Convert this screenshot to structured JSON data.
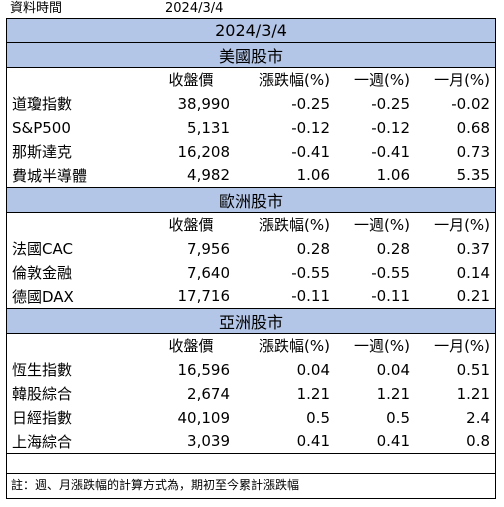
{
  "meta": {
    "label": "資料時間",
    "date": "2024/3/4"
  },
  "table": {
    "title": "2024/3/4",
    "columns": [
      "",
      "收盤價",
      "漲跌幅(%)",
      "一週(%)",
      "一月(%)"
    ],
    "sections": [
      {
        "name": "美國股市",
        "rows": [
          [
            "道瓊指數",
            "38,990",
            "-0.25",
            "-0.25",
            "-0.02"
          ],
          [
            "S&P500",
            "5,131",
            "-0.12",
            "-0.12",
            "0.68"
          ],
          [
            "那斯達克",
            "16,208",
            "-0.41",
            "-0.41",
            "0.73"
          ],
          [
            "費城半導體",
            "4,982",
            "1.06",
            "1.06",
            "5.35"
          ]
        ]
      },
      {
        "name": "歐洲股市",
        "rows": [
          [
            "法國CAC",
            "7,956",
            "0.28",
            "0.28",
            "0.37"
          ],
          [
            "倫敦金融",
            "7,640",
            "-0.55",
            "-0.55",
            "0.14"
          ],
          [
            "德國DAX",
            "17,716",
            "-0.11",
            "-0.11",
            "0.21"
          ]
        ]
      },
      {
        "name": "亞洲股市",
        "rows": [
          [
            "恆生指數",
            "16,596",
            "0.04",
            "0.04",
            "0.51"
          ],
          [
            "韓股綜合",
            "2,674",
            "1.21",
            "1.21",
            "1.21"
          ],
          [
            "日經指數",
            "40,109",
            "0.5",
            "0.5",
            "2.4"
          ],
          [
            "上海綜合",
            "3,039",
            "0.41",
            "0.41",
            "0.8"
          ]
        ]
      }
    ]
  },
  "footnote": "註：週、月漲跌幅的計算方式為，期初至今累計漲跌幅"
}
